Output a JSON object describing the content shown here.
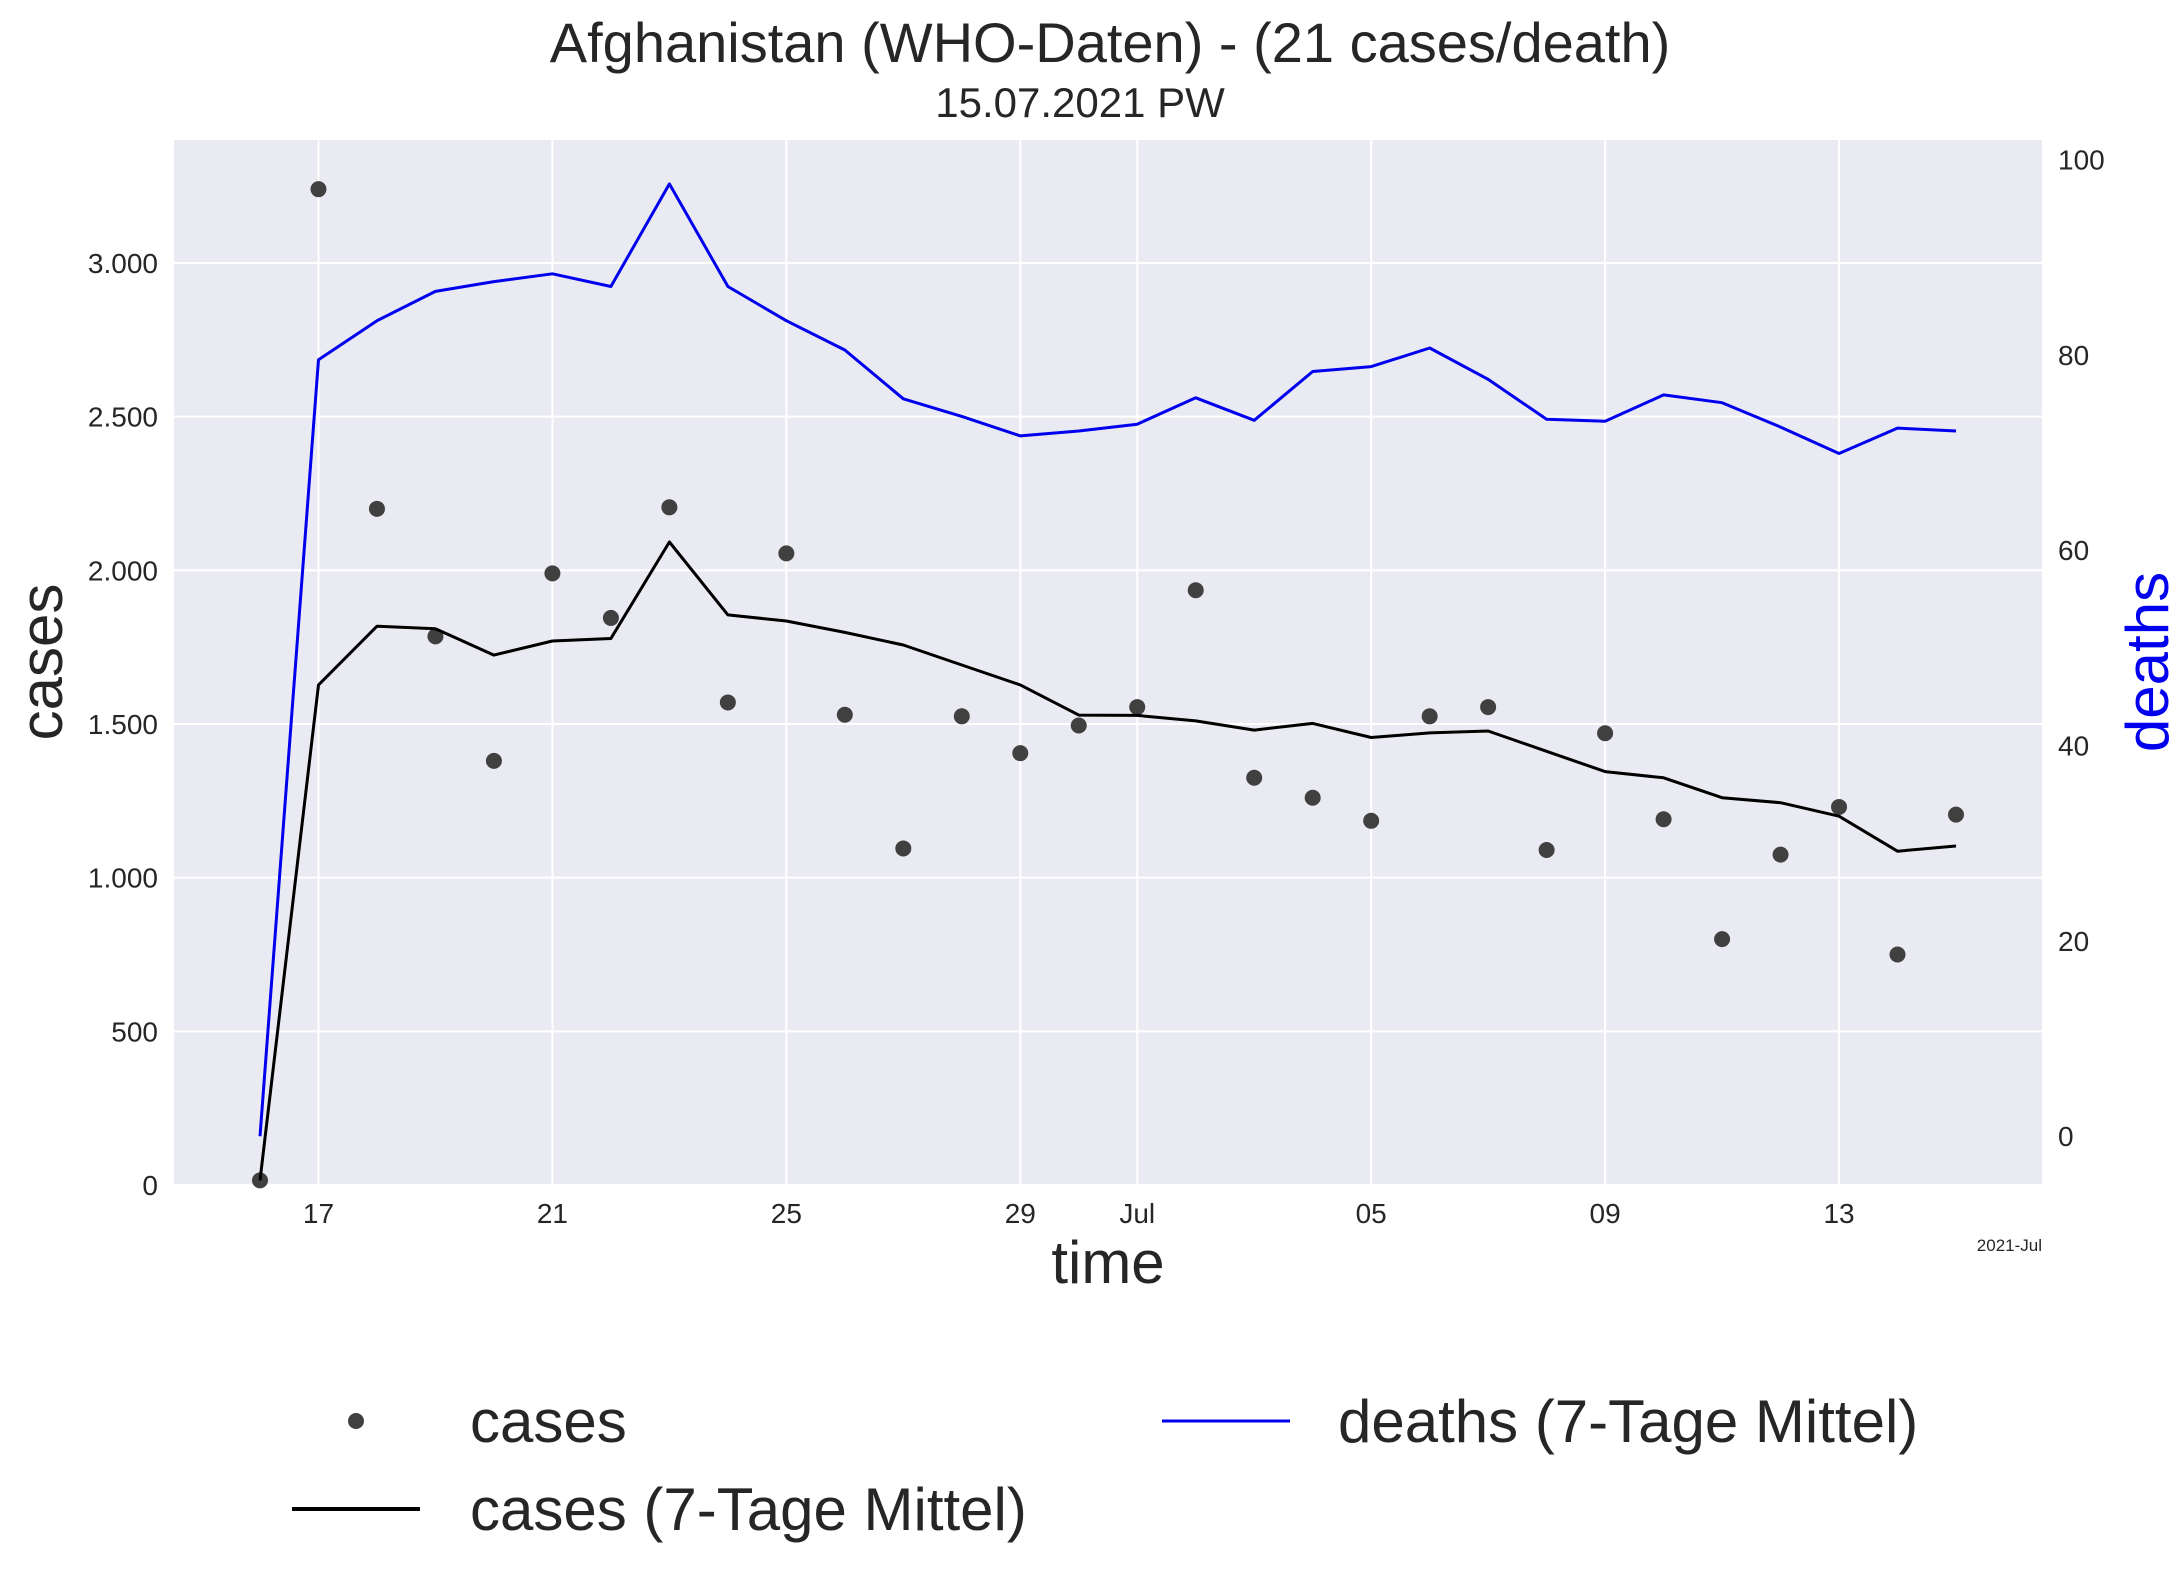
{
  "chart_data": {
    "type": "line",
    "title": "Afghanistan (WHO-Daten) - (21 cases/death)",
    "subtitle": "15.07.2021 PW",
    "xlabel": "time",
    "ylabel": "cases",
    "ylabel_right": "deaths",
    "x_note": "2021-Jul",
    "ylim": [
      0,
      3400
    ],
    "ylim_right": [
      -5,
      102
    ],
    "yticks": [
      0,
      500,
      1000,
      1500,
      2000,
      2500,
      3000
    ],
    "ytick_labels": [
      "0",
      "500",
      "1.000",
      "1.500",
      "2.000",
      "2.500",
      "3.000"
    ],
    "yticks_right": [
      0,
      20,
      40,
      60,
      80,
      100
    ],
    "ytick_labels_right": [
      "0",
      "20",
      "40",
      "60",
      "80",
      "100"
    ],
    "xticks": [
      "2021-06-17",
      "2021-06-21",
      "2021-06-25",
      "2021-06-29",
      "2021-07-01",
      "2021-07-05",
      "2021-07-09",
      "2021-07-13"
    ],
    "xtick_labels": [
      "17",
      "21",
      "25",
      "29",
      "Jul",
      "05",
      "09",
      "13"
    ],
    "x": [
      "2021-06-16",
      "2021-06-17",
      "2021-06-18",
      "2021-06-19",
      "2021-06-20",
      "2021-06-21",
      "2021-06-22",
      "2021-06-23",
      "2021-06-24",
      "2021-06-25",
      "2021-06-26",
      "2021-06-27",
      "2021-06-28",
      "2021-06-29",
      "2021-06-30",
      "2021-07-01",
      "2021-07-02",
      "2021-07-03",
      "2021-07-04",
      "2021-07-05",
      "2021-07-06",
      "2021-07-07",
      "2021-07-08",
      "2021-07-09",
      "2021-07-10",
      "2021-07-11",
      "2021-07-12",
      "2021-07-13",
      "2021-07-14",
      "2021-07-15"
    ],
    "grid": true,
    "legend_position": "bottom",
    "background": "#eaeaf2",
    "series": [
      {
        "name": "cases",
        "kind": "scatter",
        "axis": "left",
        "color": "#404040",
        "values": [
          15,
          3240,
          2200,
          1785,
          1380,
          1990,
          1845,
          2205,
          1570,
          2055,
          1530,
          1095,
          1525,
          1405,
          1495,
          1555,
          1935,
          1325,
          1260,
          1185,
          1525,
          1555,
          1090,
          1470,
          1190,
          800,
          1075,
          1230,
          750,
          1205
        ]
      },
      {
        "name": "cases (7-Tage Mittel)",
        "kind": "line",
        "axis": "left",
        "color": "#000000",
        "values": [
          15,
          1627,
          1818,
          1810,
          1724,
          1770,
          1778,
          2092,
          1855,
          1835,
          1798,
          1757,
          1692,
          1627,
          1529,
          1528,
          1510,
          1480,
          1502,
          1456,
          1471,
          1477,
          1411,
          1345,
          1325,
          1260,
          1244,
          1200,
          1086,
          1103
        ]
      },
      {
        "name": "deaths (7-Tage Mittel)",
        "kind": "line",
        "axis": "right",
        "color": "#0000ee",
        "values": [
          0,
          79.5,
          83.5,
          86.5,
          87.5,
          88.3,
          87.0,
          97.5,
          87.0,
          83.5,
          80.5,
          75.5,
          73.7,
          71.7,
          72.2,
          72.9,
          75.6,
          73.3,
          78.3,
          78.8,
          80.7,
          77.5,
          73.4,
          73.2,
          75.9,
          75.1,
          72.6,
          69.9,
          72.5,
          72.2
        ]
      }
    ]
  }
}
